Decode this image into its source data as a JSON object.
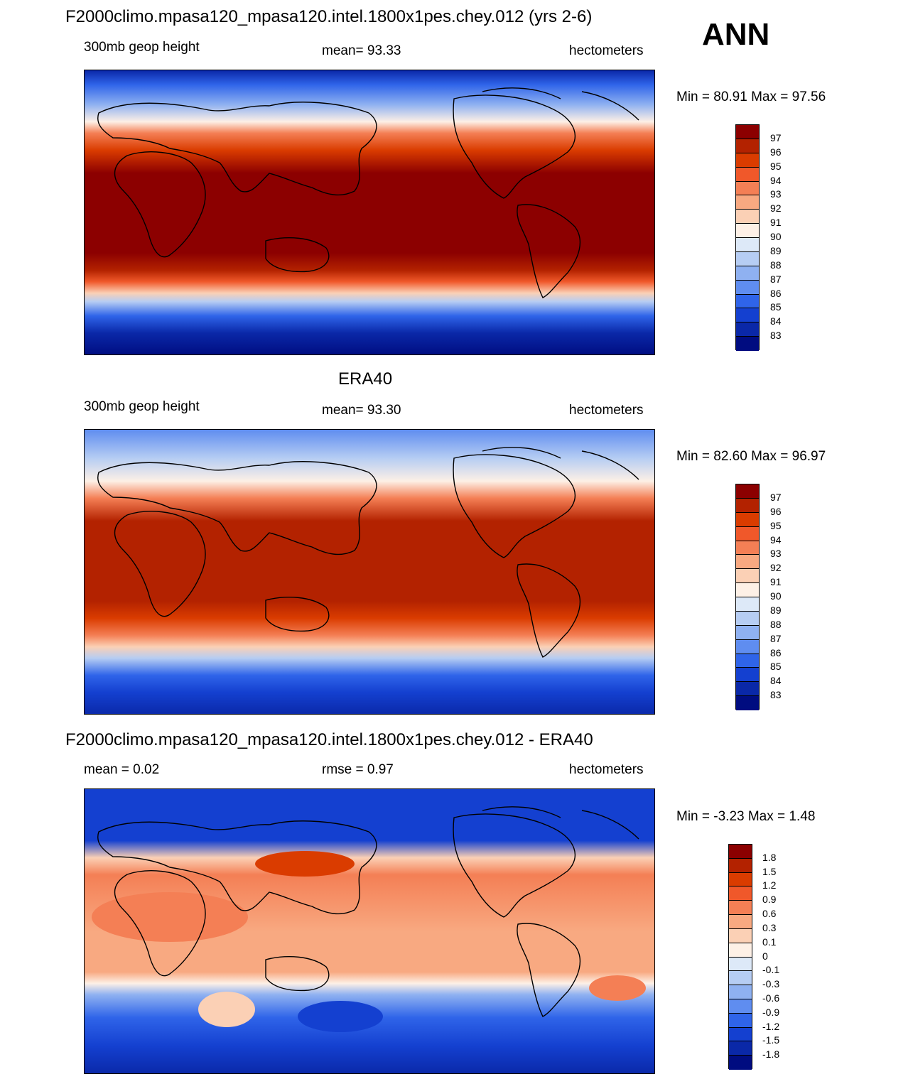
{
  "season": "ANN",
  "panels": [
    {
      "title": "F2000climo.mpasa120_mpasa120.intel.1800x1pes.chey.012 (yrs 2-6)",
      "left_label": "300mb geop height",
      "center_label": "mean=  93.33",
      "units": "hectometers",
      "minmax": "Min =  80.91 Max =  97.56",
      "min": 80.91,
      "max": 97.56,
      "mean": 93.33
    },
    {
      "title": "ERA40",
      "left_label": "300mb geop height",
      "center_label": "mean=  93.30",
      "units": "hectometers",
      "minmax": "Min =  82.60 Max =  96.97",
      "min": 82.6,
      "max": 96.97,
      "mean": 93.3
    },
    {
      "title": "F2000climo.mpasa120_mpasa120.intel.1800x1pes.chey.012 - ERA40",
      "left_label": "mean =   0.02",
      "center_label": "rmse =   0.97",
      "units": "hectometers",
      "minmax": "Min =  -3.23 Max =   1.48",
      "min": -3.23,
      "max": 1.48,
      "mean": 0.02,
      "rmse": 0.97
    }
  ],
  "colorbar_abs": {
    "labels": [
      "97",
      "96",
      "95",
      "94",
      "93",
      "92",
      "91",
      "90",
      "89",
      "88",
      "87",
      "86",
      "85",
      "84",
      "83"
    ],
    "colors": [
      "#8c0000",
      "#b32200",
      "#da3c00",
      "#f0582a",
      "#f47f55",
      "#f8a981",
      "#fbd0b5",
      "#fdf0e6",
      "#dde9f8",
      "#b6cdf3",
      "#8fb1f1",
      "#5f8df0",
      "#2f64e9",
      "#1440d0",
      "#0a28a8",
      "#000c80"
    ]
  },
  "colorbar_diff": {
    "labels": [
      "1.8",
      "1.5",
      "1.2",
      "0.9",
      "0.6",
      "0.3",
      "0.1",
      "0",
      "-0.1",
      "-0.3",
      "-0.6",
      "-0.9",
      "-1.2",
      "-1.5",
      "-1.8"
    ],
    "colors": [
      "#8c0000",
      "#b32200",
      "#da3c00",
      "#f0582a",
      "#f47f55",
      "#f8a981",
      "#fbd0b5",
      "#fdf0e6",
      "#dde9f8",
      "#b6cdf3",
      "#8fb1f1",
      "#5f8df0",
      "#2f64e9",
      "#1440d0",
      "#0a28a8",
      "#000c80"
    ]
  }
}
